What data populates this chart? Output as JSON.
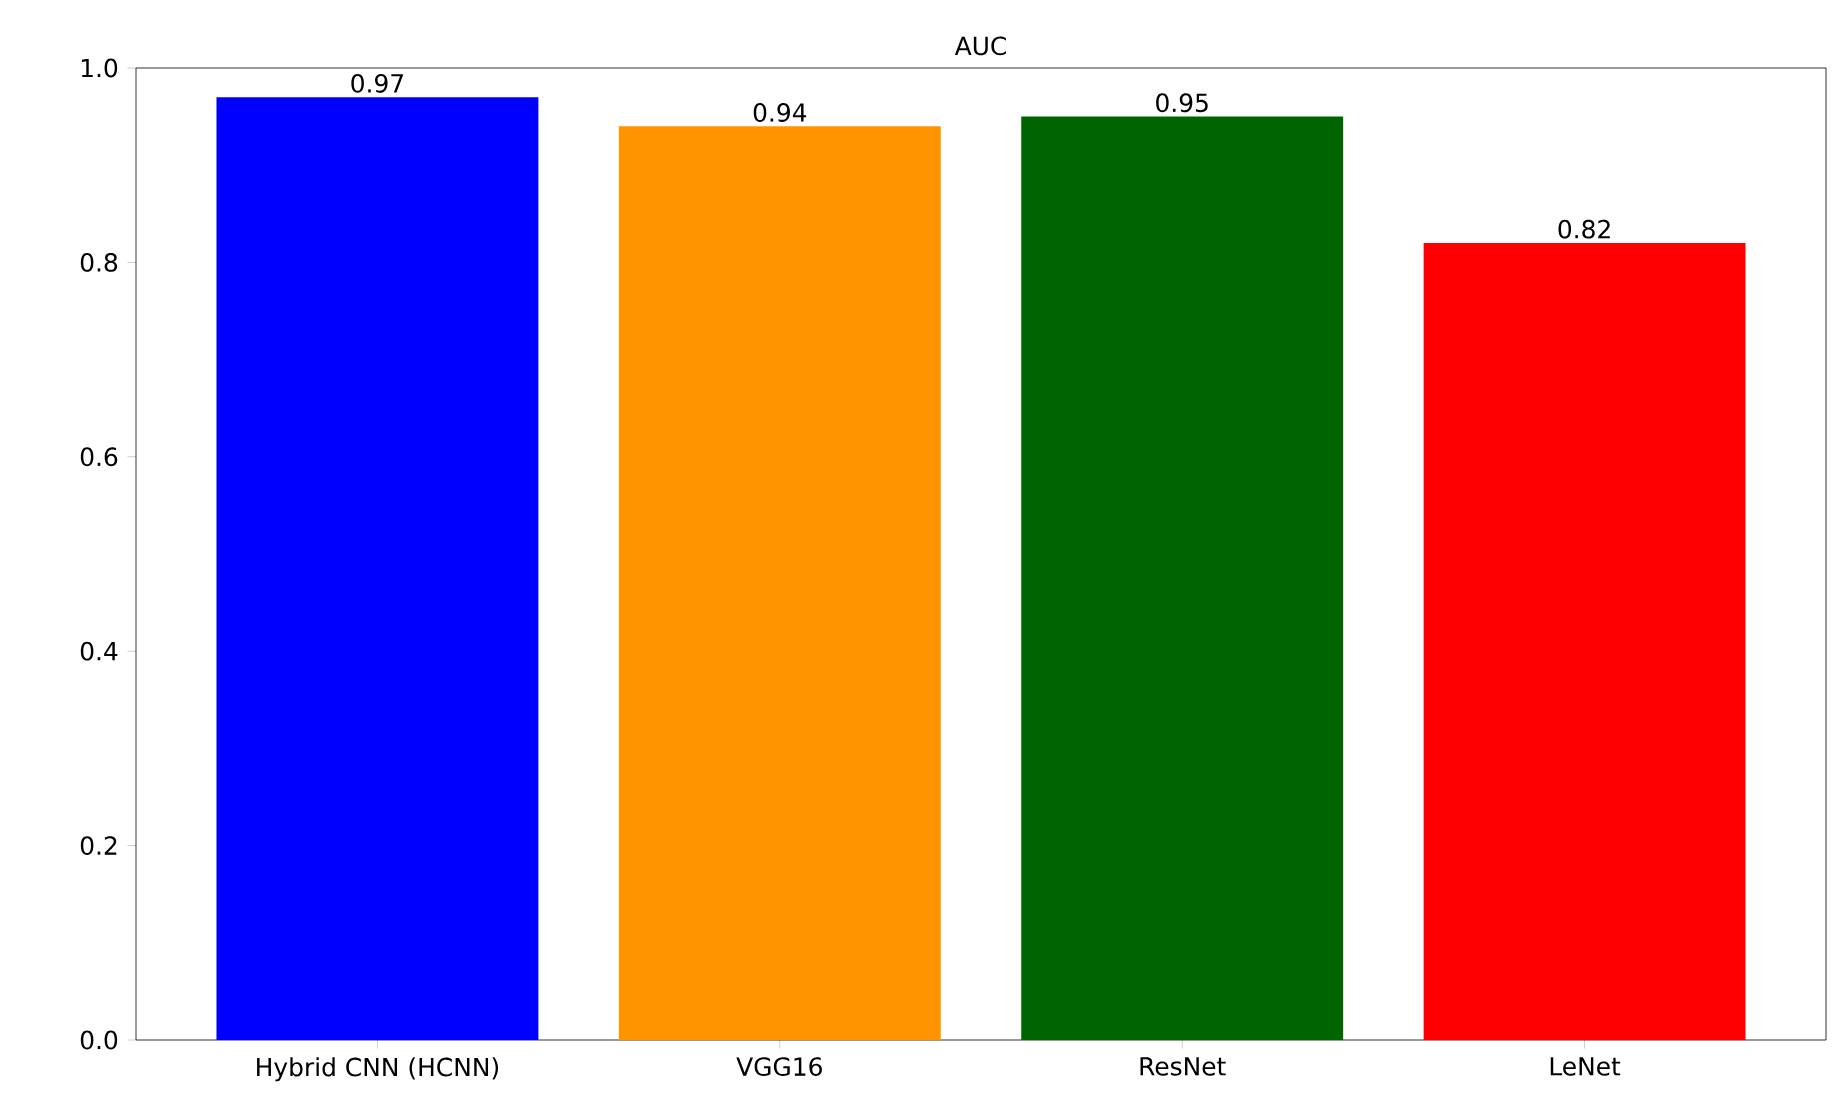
{
  "chart_data": {
    "type": "bar",
    "title": "AUC",
    "categories": [
      "Hybrid CNN (HCNN)",
      "VGG16",
      "ResNet",
      "LeNet"
    ],
    "values": [
      0.97,
      0.94,
      0.95,
      0.82
    ],
    "colors": [
      "#0000ff",
      "#ff9400",
      "#006400",
      "#ff0000"
    ],
    "ylim": [
      0,
      1
    ],
    "yticks": [
      {
        "value": 0,
        "label": "0.0"
      },
      {
        "value": 0.2,
        "label": "0.2"
      },
      {
        "value": 0.4,
        "label": "0.4"
      },
      {
        "value": 0.6,
        "label": "0.6"
      },
      {
        "value": 0.8,
        "label": "0.8"
      },
      {
        "value": 1,
        "label": "1.0"
      }
    ],
    "data_labels": true
  }
}
